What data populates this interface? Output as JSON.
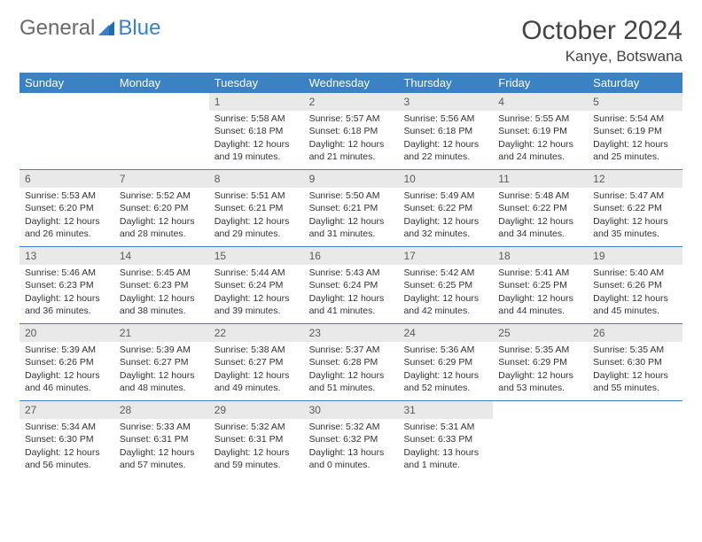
{
  "logo": {
    "part1": "General",
    "part2": "Blue"
  },
  "title": "October 2024",
  "location": "Kanye, Botswana",
  "colors": {
    "header_bg": "#3b82c4",
    "header_text": "#ffffff",
    "daynum_bg": "#e9e9e9",
    "border": "#3b82c4"
  },
  "dow": [
    "Sunday",
    "Monday",
    "Tuesday",
    "Wednesday",
    "Thursday",
    "Friday",
    "Saturday"
  ],
  "weeks": [
    [
      null,
      null,
      {
        "n": "1",
        "sr": "Sunrise: 5:58 AM",
        "ss": "Sunset: 6:18 PM",
        "d1": "Daylight: 12 hours",
        "d2": "and 19 minutes."
      },
      {
        "n": "2",
        "sr": "Sunrise: 5:57 AM",
        "ss": "Sunset: 6:18 PM",
        "d1": "Daylight: 12 hours",
        "d2": "and 21 minutes."
      },
      {
        "n": "3",
        "sr": "Sunrise: 5:56 AM",
        "ss": "Sunset: 6:18 PM",
        "d1": "Daylight: 12 hours",
        "d2": "and 22 minutes."
      },
      {
        "n": "4",
        "sr": "Sunrise: 5:55 AM",
        "ss": "Sunset: 6:19 PM",
        "d1": "Daylight: 12 hours",
        "d2": "and 24 minutes."
      },
      {
        "n": "5",
        "sr": "Sunrise: 5:54 AM",
        "ss": "Sunset: 6:19 PM",
        "d1": "Daylight: 12 hours",
        "d2": "and 25 minutes."
      }
    ],
    [
      {
        "n": "6",
        "sr": "Sunrise: 5:53 AM",
        "ss": "Sunset: 6:20 PM",
        "d1": "Daylight: 12 hours",
        "d2": "and 26 minutes."
      },
      {
        "n": "7",
        "sr": "Sunrise: 5:52 AM",
        "ss": "Sunset: 6:20 PM",
        "d1": "Daylight: 12 hours",
        "d2": "and 28 minutes."
      },
      {
        "n": "8",
        "sr": "Sunrise: 5:51 AM",
        "ss": "Sunset: 6:21 PM",
        "d1": "Daylight: 12 hours",
        "d2": "and 29 minutes."
      },
      {
        "n": "9",
        "sr": "Sunrise: 5:50 AM",
        "ss": "Sunset: 6:21 PM",
        "d1": "Daylight: 12 hours",
        "d2": "and 31 minutes."
      },
      {
        "n": "10",
        "sr": "Sunrise: 5:49 AM",
        "ss": "Sunset: 6:22 PM",
        "d1": "Daylight: 12 hours",
        "d2": "and 32 minutes."
      },
      {
        "n": "11",
        "sr": "Sunrise: 5:48 AM",
        "ss": "Sunset: 6:22 PM",
        "d1": "Daylight: 12 hours",
        "d2": "and 34 minutes."
      },
      {
        "n": "12",
        "sr": "Sunrise: 5:47 AM",
        "ss": "Sunset: 6:22 PM",
        "d1": "Daylight: 12 hours",
        "d2": "and 35 minutes."
      }
    ],
    [
      {
        "n": "13",
        "sr": "Sunrise: 5:46 AM",
        "ss": "Sunset: 6:23 PM",
        "d1": "Daylight: 12 hours",
        "d2": "and 36 minutes."
      },
      {
        "n": "14",
        "sr": "Sunrise: 5:45 AM",
        "ss": "Sunset: 6:23 PM",
        "d1": "Daylight: 12 hours",
        "d2": "and 38 minutes."
      },
      {
        "n": "15",
        "sr": "Sunrise: 5:44 AM",
        "ss": "Sunset: 6:24 PM",
        "d1": "Daylight: 12 hours",
        "d2": "and 39 minutes."
      },
      {
        "n": "16",
        "sr": "Sunrise: 5:43 AM",
        "ss": "Sunset: 6:24 PM",
        "d1": "Daylight: 12 hours",
        "d2": "and 41 minutes."
      },
      {
        "n": "17",
        "sr": "Sunrise: 5:42 AM",
        "ss": "Sunset: 6:25 PM",
        "d1": "Daylight: 12 hours",
        "d2": "and 42 minutes."
      },
      {
        "n": "18",
        "sr": "Sunrise: 5:41 AM",
        "ss": "Sunset: 6:25 PM",
        "d1": "Daylight: 12 hours",
        "d2": "and 44 minutes."
      },
      {
        "n": "19",
        "sr": "Sunrise: 5:40 AM",
        "ss": "Sunset: 6:26 PM",
        "d1": "Daylight: 12 hours",
        "d2": "and 45 minutes."
      }
    ],
    [
      {
        "n": "20",
        "sr": "Sunrise: 5:39 AM",
        "ss": "Sunset: 6:26 PM",
        "d1": "Daylight: 12 hours",
        "d2": "and 46 minutes."
      },
      {
        "n": "21",
        "sr": "Sunrise: 5:39 AM",
        "ss": "Sunset: 6:27 PM",
        "d1": "Daylight: 12 hours",
        "d2": "and 48 minutes."
      },
      {
        "n": "22",
        "sr": "Sunrise: 5:38 AM",
        "ss": "Sunset: 6:27 PM",
        "d1": "Daylight: 12 hours",
        "d2": "and 49 minutes."
      },
      {
        "n": "23",
        "sr": "Sunrise: 5:37 AM",
        "ss": "Sunset: 6:28 PM",
        "d1": "Daylight: 12 hours",
        "d2": "and 51 minutes."
      },
      {
        "n": "24",
        "sr": "Sunrise: 5:36 AM",
        "ss": "Sunset: 6:29 PM",
        "d1": "Daylight: 12 hours",
        "d2": "and 52 minutes."
      },
      {
        "n": "25",
        "sr": "Sunrise: 5:35 AM",
        "ss": "Sunset: 6:29 PM",
        "d1": "Daylight: 12 hours",
        "d2": "and 53 minutes."
      },
      {
        "n": "26",
        "sr": "Sunrise: 5:35 AM",
        "ss": "Sunset: 6:30 PM",
        "d1": "Daylight: 12 hours",
        "d2": "and 55 minutes."
      }
    ],
    [
      {
        "n": "27",
        "sr": "Sunrise: 5:34 AM",
        "ss": "Sunset: 6:30 PM",
        "d1": "Daylight: 12 hours",
        "d2": "and 56 minutes."
      },
      {
        "n": "28",
        "sr": "Sunrise: 5:33 AM",
        "ss": "Sunset: 6:31 PM",
        "d1": "Daylight: 12 hours",
        "d2": "and 57 minutes."
      },
      {
        "n": "29",
        "sr": "Sunrise: 5:32 AM",
        "ss": "Sunset: 6:31 PM",
        "d1": "Daylight: 12 hours",
        "d2": "and 59 minutes."
      },
      {
        "n": "30",
        "sr": "Sunrise: 5:32 AM",
        "ss": "Sunset: 6:32 PM",
        "d1": "Daylight: 13 hours",
        "d2": "and 0 minutes."
      },
      {
        "n": "31",
        "sr": "Sunrise: 5:31 AM",
        "ss": "Sunset: 6:33 PM",
        "d1": "Daylight: 13 hours",
        "d2": "and 1 minute."
      },
      null,
      null
    ]
  ]
}
